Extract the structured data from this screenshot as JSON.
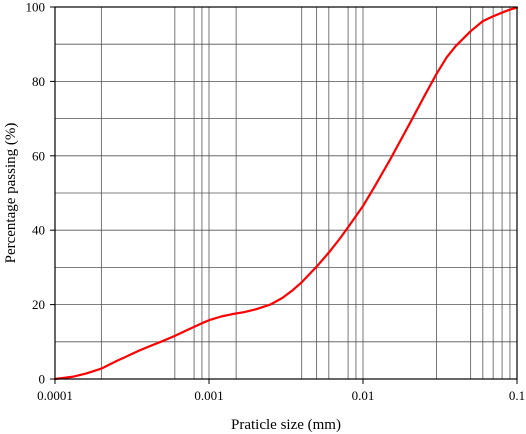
{
  "chart_data": {
    "type": "line",
    "title": "",
    "xlabel": "Praticle size (mm)",
    "ylabel": "Percentage passing (%)",
    "xscale": "log",
    "xlim": [
      0.0001,
      0.1
    ],
    "ylim": [
      0,
      100
    ],
    "grid": true,
    "x_ticks": [
      {
        "value": 0.0001,
        "label": "0.0001"
      },
      {
        "value": 0.001,
        "label": "0.001"
      },
      {
        "value": 0.01,
        "label": "0.01"
      },
      {
        "value": 0.1,
        "label": "0.1"
      }
    ],
    "y_ticks": [
      {
        "value": 0,
        "label": "0"
      },
      {
        "value": 20,
        "label": "20"
      },
      {
        "value": 40,
        "label": "40"
      },
      {
        "value": 60,
        "label": "60"
      },
      {
        "value": 80,
        "label": "80"
      },
      {
        "value": 100,
        "label": "100"
      }
    ],
    "x_grid_values": [
      0.0002,
      0.0006,
      0.0008,
      0.0009,
      0.001,
      0.0015,
      0.004,
      0.005,
      0.006,
      0.008,
      0.009,
      0.01,
      0.03,
      0.05,
      0.06,
      0.07,
      0.08,
      0.09
    ],
    "y_grid_values": [
      10,
      20,
      30,
      40,
      50,
      60,
      70,
      80,
      90
    ],
    "series": [
      {
        "color": "#ff0000",
        "x": [
          0.0001,
          0.00013,
          0.00016,
          0.0002,
          0.00025,
          0.0003,
          0.00035,
          0.0004,
          0.0005,
          0.0006,
          0.0007,
          0.0008,
          0.0009,
          0.001,
          0.0012,
          0.0014,
          0.0017,
          0.002,
          0.0025,
          0.003,
          0.0035,
          0.004,
          0.005,
          0.006,
          0.007,
          0.008,
          0.01,
          0.012,
          0.015,
          0.02,
          0.025,
          0.03,
          0.035,
          0.04,
          0.05,
          0.06,
          0.07,
          0.08,
          0.09,
          0.1
        ],
        "y": [
          0,
          0.6,
          1.5,
          2.8,
          4.8,
          6.3,
          7.6,
          8.6,
          10.2,
          11.6,
          12.9,
          14.0,
          15.0,
          15.8,
          16.8,
          17.4,
          18.0,
          18.7,
          20.0,
          21.8,
          23.9,
          26.0,
          30.2,
          34.0,
          37.5,
          40.8,
          46.5,
          52.0,
          59.0,
          68.5,
          76.0,
          82.0,
          86.5,
          89.5,
          93.5,
          96.2,
          97.5,
          98.5,
          99.3,
          99.8
        ]
      }
    ]
  }
}
